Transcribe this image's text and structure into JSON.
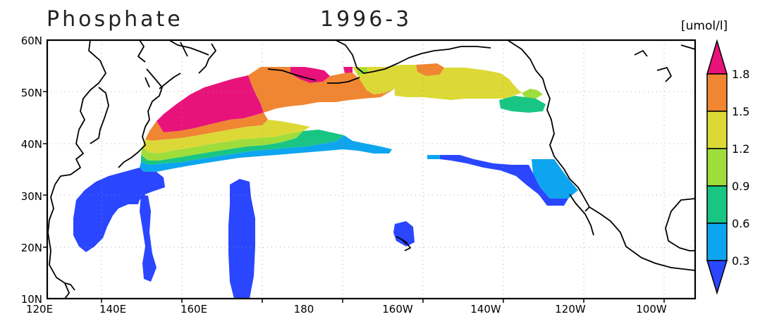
{
  "map": {
    "variable": "Phosphate",
    "period": "1996-3",
    "units": "[umol/l]",
    "lat_ticks": [
      "60N",
      "50N",
      "40N",
      "30N",
      "20N",
      "10N"
    ],
    "lon_ticks": [
      "120E",
      "140E",
      "160E",
      "180",
      "160W",
      "140W",
      "120W",
      "100W"
    ],
    "colorbar": {
      "labels": [
        "1.8",
        "1.5",
        "1.2",
        "0.9",
        "0.6",
        "0.3"
      ],
      "bins": [
        {
          "range": "> 1.8",
          "color": "#e8137a"
        },
        {
          "range": "1.5 - 1.8",
          "color": "#f08632"
        },
        {
          "range": "1.2 - 1.5",
          "color": "#dcd937"
        },
        {
          "range": "0.9 - 1.2",
          "color": "#9fdd3b"
        },
        {
          "range": "0.6 - 0.9",
          "color": "#19c583"
        },
        {
          "range": "0.3 - 0.6",
          "color": "#0ea5f0"
        },
        {
          "range": "< 0.3",
          "color": "#2a46ff"
        }
      ]
    }
  }
}
